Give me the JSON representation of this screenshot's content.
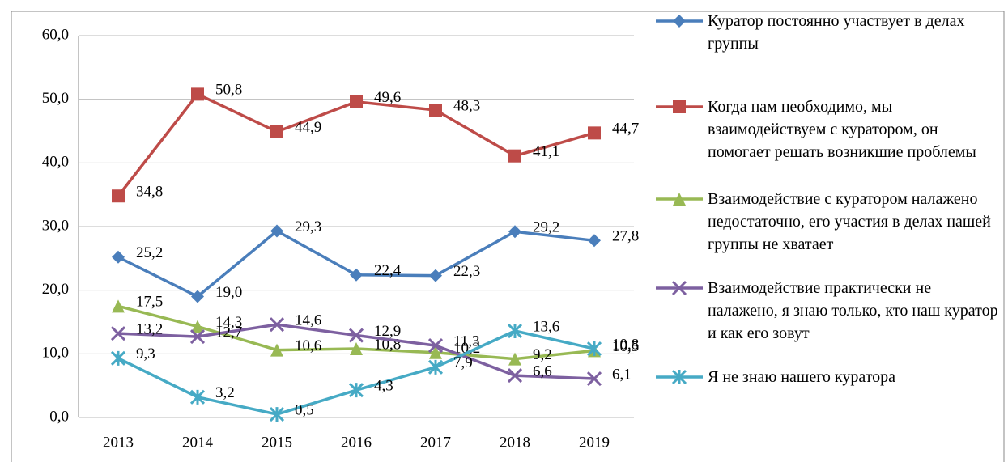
{
  "chart_data": {
    "type": "line",
    "categories": [
      "2013",
      "2014",
      "2015",
      "2016",
      "2017",
      "2018",
      "2019"
    ],
    "ylim": [
      0,
      60
    ],
    "yticks": [
      {
        "value": 0,
        "label": "0,0"
      },
      {
        "value": 10,
        "label": "10,0"
      },
      {
        "value": 20,
        "label": "20,0"
      },
      {
        "value": 30,
        "label": "30,0"
      },
      {
        "value": 40,
        "label": "40,0"
      },
      {
        "value": 50,
        "label": "50,0"
      },
      {
        "value": 60,
        "label": "60,0"
      }
    ],
    "grid": true,
    "legend": "right",
    "series": [
      {
        "name": "Куратор постоянно участвует в делах группы",
        "color": "#4a7ebb",
        "marker": "diamond",
        "values": [
          25.2,
          19.0,
          29.3,
          22.4,
          22.3,
          29.2,
          27.8
        ],
        "value_labels": [
          "25,2",
          "19,0",
          "29,3",
          "22,4",
          "22,3",
          "29,2",
          "27,8"
        ]
      },
      {
        "name": "Когда нам необходимо, мы взаимодействуем с куратором, он помогает решать возникшие проблемы",
        "color": "#be4b48",
        "marker": "square",
        "values": [
          34.8,
          50.8,
          44.9,
          49.6,
          48.3,
          41.1,
          44.7
        ],
        "value_labels": [
          "34,8",
          "50,8",
          "44,9",
          "49,6",
          "48,3",
          "41,1",
          "44,7"
        ]
      },
      {
        "name": "Взаимодействие с куратором налажено недостаточно, его участия в делах нашей группы не хватает",
        "color": "#98b954",
        "marker": "triangle",
        "values": [
          17.5,
          14.3,
          10.6,
          10.8,
          10.2,
          9.2,
          10.5
        ],
        "value_labels": [
          "17,5",
          "14,3",
          "10,6",
          "10,8",
          "10,2",
          "9,2",
          "10,5"
        ]
      },
      {
        "name": "Взаимодействие практически не налажено, я знаю только, кто наш куратор и как его зовут",
        "color": "#7d60a0",
        "marker": "x",
        "values": [
          13.2,
          12.7,
          14.6,
          12.9,
          11.3,
          6.6,
          6.1
        ],
        "value_labels": [
          "13,2",
          "12,7",
          "14,6",
          "12,9",
          "11,3",
          "6,6",
          "6,1"
        ]
      },
      {
        "name": "Я не знаю нашего куратора",
        "color": "#46aac5",
        "marker": "star",
        "values": [
          9.3,
          3.2,
          0.5,
          4.3,
          7.9,
          13.6,
          10.8
        ],
        "value_labels": [
          "9,3",
          "3,2",
          "0,5",
          "4,3",
          "7,9",
          "13,6",
          "10,8"
        ]
      }
    ]
  }
}
